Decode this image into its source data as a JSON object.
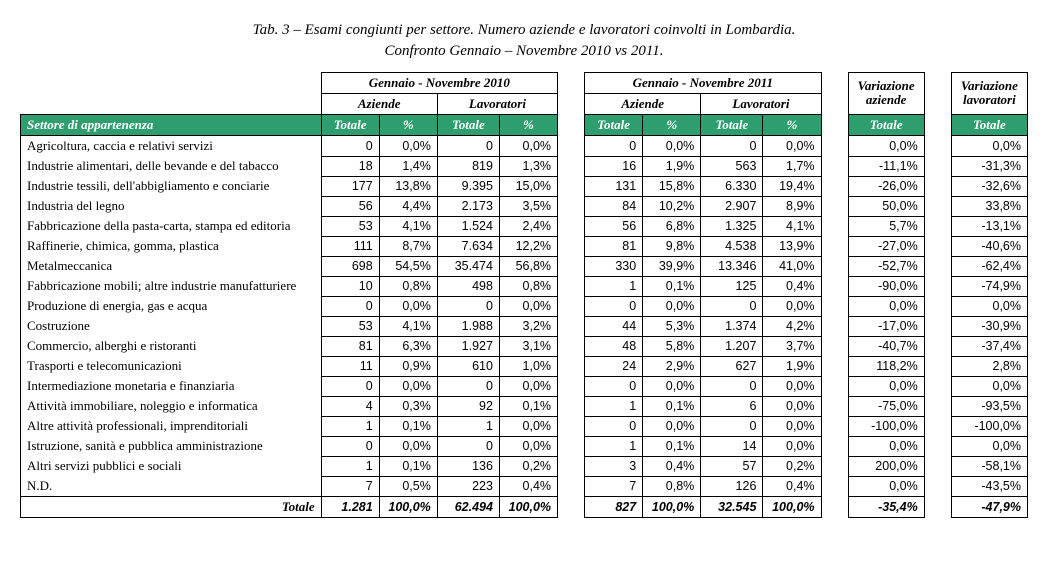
{
  "title_line1": "Tab. 3 – Esami congiunti per settore. Numero aziende e lavoratori coinvolti in Lombardia.",
  "title_line2": "Confronto Gennaio – Novembre 2010 vs 2011.",
  "headers": {
    "period2010": "Gennaio - Novembre 2010",
    "period2011": "Gennaio - Novembre 2011",
    "var_az": "Variazione aziende",
    "var_lav": "Variazione lavoratori",
    "aziende": "Aziende",
    "lavoratori": "Lavoratori",
    "sector": "Settore di appartenenza",
    "totale": "Totale",
    "pct": "%"
  },
  "style": {
    "header_bg": "#2f9e6f",
    "header_fg": "#ffffff",
    "border": "#000000",
    "body_font": "Times New Roman",
    "num_font": "Arial"
  },
  "rows": [
    {
      "s": "Agricoltura, caccia e relativi servizi",
      "a10": "0",
      "a10p": "0,0%",
      "l10": "0",
      "l10p": "0,0%",
      "a11": "0",
      "a11p": "0,0%",
      "l11": "0",
      "l11p": "0,0%",
      "va": "0,0%",
      "vl": "0,0%"
    },
    {
      "s": "Industrie alimentari, delle bevande e del tabacco",
      "a10": "18",
      "a10p": "1,4%",
      "l10": "819",
      "l10p": "1,3%",
      "a11": "16",
      "a11p": "1,9%",
      "l11": "563",
      "l11p": "1,7%",
      "va": "-11,1%",
      "vl": "-31,3%"
    },
    {
      "s": "Industrie tessili, dell'abbigliamento e conciarie",
      "a10": "177",
      "a10p": "13,8%",
      "l10": "9.395",
      "l10p": "15,0%",
      "a11": "131",
      "a11p": "15,8%",
      "l11": "6.330",
      "l11p": "19,4%",
      "va": "-26,0%",
      "vl": "-32,6%"
    },
    {
      "s": "Industria del legno",
      "a10": "56",
      "a10p": "4,4%",
      "l10": "2.173",
      "l10p": "3,5%",
      "a11": "84",
      "a11p": "10,2%",
      "l11": "2.907",
      "l11p": "8,9%",
      "va": "50,0%",
      "vl": "33,8%"
    },
    {
      "s": "Fabbricazione della pasta-carta, stampa ed editoria",
      "a10": "53",
      "a10p": "4,1%",
      "l10": "1.524",
      "l10p": "2,4%",
      "a11": "56",
      "a11p": "6,8%",
      "l11": "1.325",
      "l11p": "4,1%",
      "va": "5,7%",
      "vl": "-13,1%"
    },
    {
      "s": "Raffinerie, chimica, gomma, plastica",
      "a10": "111",
      "a10p": "8,7%",
      "l10": "7.634",
      "l10p": "12,2%",
      "a11": "81",
      "a11p": "9,8%",
      "l11": "4.538",
      "l11p": "13,9%",
      "va": "-27,0%",
      "vl": "-40,6%"
    },
    {
      "s": "Metalmeccanica",
      "a10": "698",
      "a10p": "54,5%",
      "l10": "35.474",
      "l10p": "56,8%",
      "a11": "330",
      "a11p": "39,9%",
      "l11": "13.346",
      "l11p": "41,0%",
      "va": "-52,7%",
      "vl": "-62,4%"
    },
    {
      "s": "Fabbricazione mobili; altre industrie manufatturiere",
      "a10": "10",
      "a10p": "0,8%",
      "l10": "498",
      "l10p": "0,8%",
      "a11": "1",
      "a11p": "0,1%",
      "l11": "125",
      "l11p": "0,4%",
      "va": "-90,0%",
      "vl": "-74,9%"
    },
    {
      "s": "Produzione di energia, gas e acqua",
      "a10": "0",
      "a10p": "0,0%",
      "l10": "0",
      "l10p": "0,0%",
      "a11": "0",
      "a11p": "0,0%",
      "l11": "0",
      "l11p": "0,0%",
      "va": "0,0%",
      "vl": "0,0%"
    },
    {
      "s": "Costruzione",
      "a10": "53",
      "a10p": "4,1%",
      "l10": "1.988",
      "l10p": "3,2%",
      "a11": "44",
      "a11p": "5,3%",
      "l11": "1.374",
      "l11p": "4,2%",
      "va": "-17,0%",
      "vl": "-30,9%"
    },
    {
      "s": "Commercio, alberghi e ristoranti",
      "a10": "81",
      "a10p": "6,3%",
      "l10": "1.927",
      "l10p": "3,1%",
      "a11": "48",
      "a11p": "5,8%",
      "l11": "1.207",
      "l11p": "3,7%",
      "va": "-40,7%",
      "vl": "-37,4%"
    },
    {
      "s": "Trasporti e telecomunicazioni",
      "a10": "11",
      "a10p": "0,9%",
      "l10": "610",
      "l10p": "1,0%",
      "a11": "24",
      "a11p": "2,9%",
      "l11": "627",
      "l11p": "1,9%",
      "va": "118,2%",
      "vl": "2,8%"
    },
    {
      "s": "Intermediazione monetaria e finanziaria",
      "a10": "0",
      "a10p": "0,0%",
      "l10": "0",
      "l10p": "0,0%",
      "a11": "0",
      "a11p": "0,0%",
      "l11": "0",
      "l11p": "0,0%",
      "va": "0,0%",
      "vl": "0,0%"
    },
    {
      "s": "Attività immobiliare, noleggio e informatica",
      "a10": "4",
      "a10p": "0,3%",
      "l10": "92",
      "l10p": "0,1%",
      "a11": "1",
      "a11p": "0,1%",
      "l11": "6",
      "l11p": "0,0%",
      "va": "-75,0%",
      "vl": "-93,5%"
    },
    {
      "s": "Altre attività professionali, imprenditoriali",
      "a10": "1",
      "a10p": "0,1%",
      "l10": "1",
      "l10p": "0,0%",
      "a11": "0",
      "a11p": "0,0%",
      "l11": "0",
      "l11p": "0,0%",
      "va": "-100,0%",
      "vl": "-100,0%"
    },
    {
      "s": "Istruzione, sanità e pubblica amministrazione",
      "a10": "0",
      "a10p": "0,0%",
      "l10": "0",
      "l10p": "0,0%",
      "a11": "1",
      "a11p": "0,1%",
      "l11": "14",
      "l11p": "0,0%",
      "va": "0,0%",
      "vl": "0,0%"
    },
    {
      "s": "Altri servizi pubblici e sociali",
      "a10": "1",
      "a10p": "0,1%",
      "l10": "136",
      "l10p": "0,2%",
      "a11": "3",
      "a11p": "0,4%",
      "l11": "57",
      "l11p": "0,2%",
      "va": "200,0%",
      "vl": "-58,1%"
    },
    {
      "s": "N.D.",
      "a10": "7",
      "a10p": "0,5%",
      "l10": "223",
      "l10p": "0,4%",
      "a11": "7",
      "a11p": "0,8%",
      "l11": "126",
      "l11p": "0,4%",
      "va": "0,0%",
      "vl": "-43,5%"
    }
  ],
  "total": {
    "s": "Totale",
    "a10": "1.281",
    "a10p": "100,0%",
    "l10": "62.494",
    "l10p": "100,0%",
    "a11": "827",
    "a11p": "100,0%",
    "l11": "32.545",
    "l11p": "100,0%",
    "va": "-35,4%",
    "vl": "-47,9%"
  }
}
